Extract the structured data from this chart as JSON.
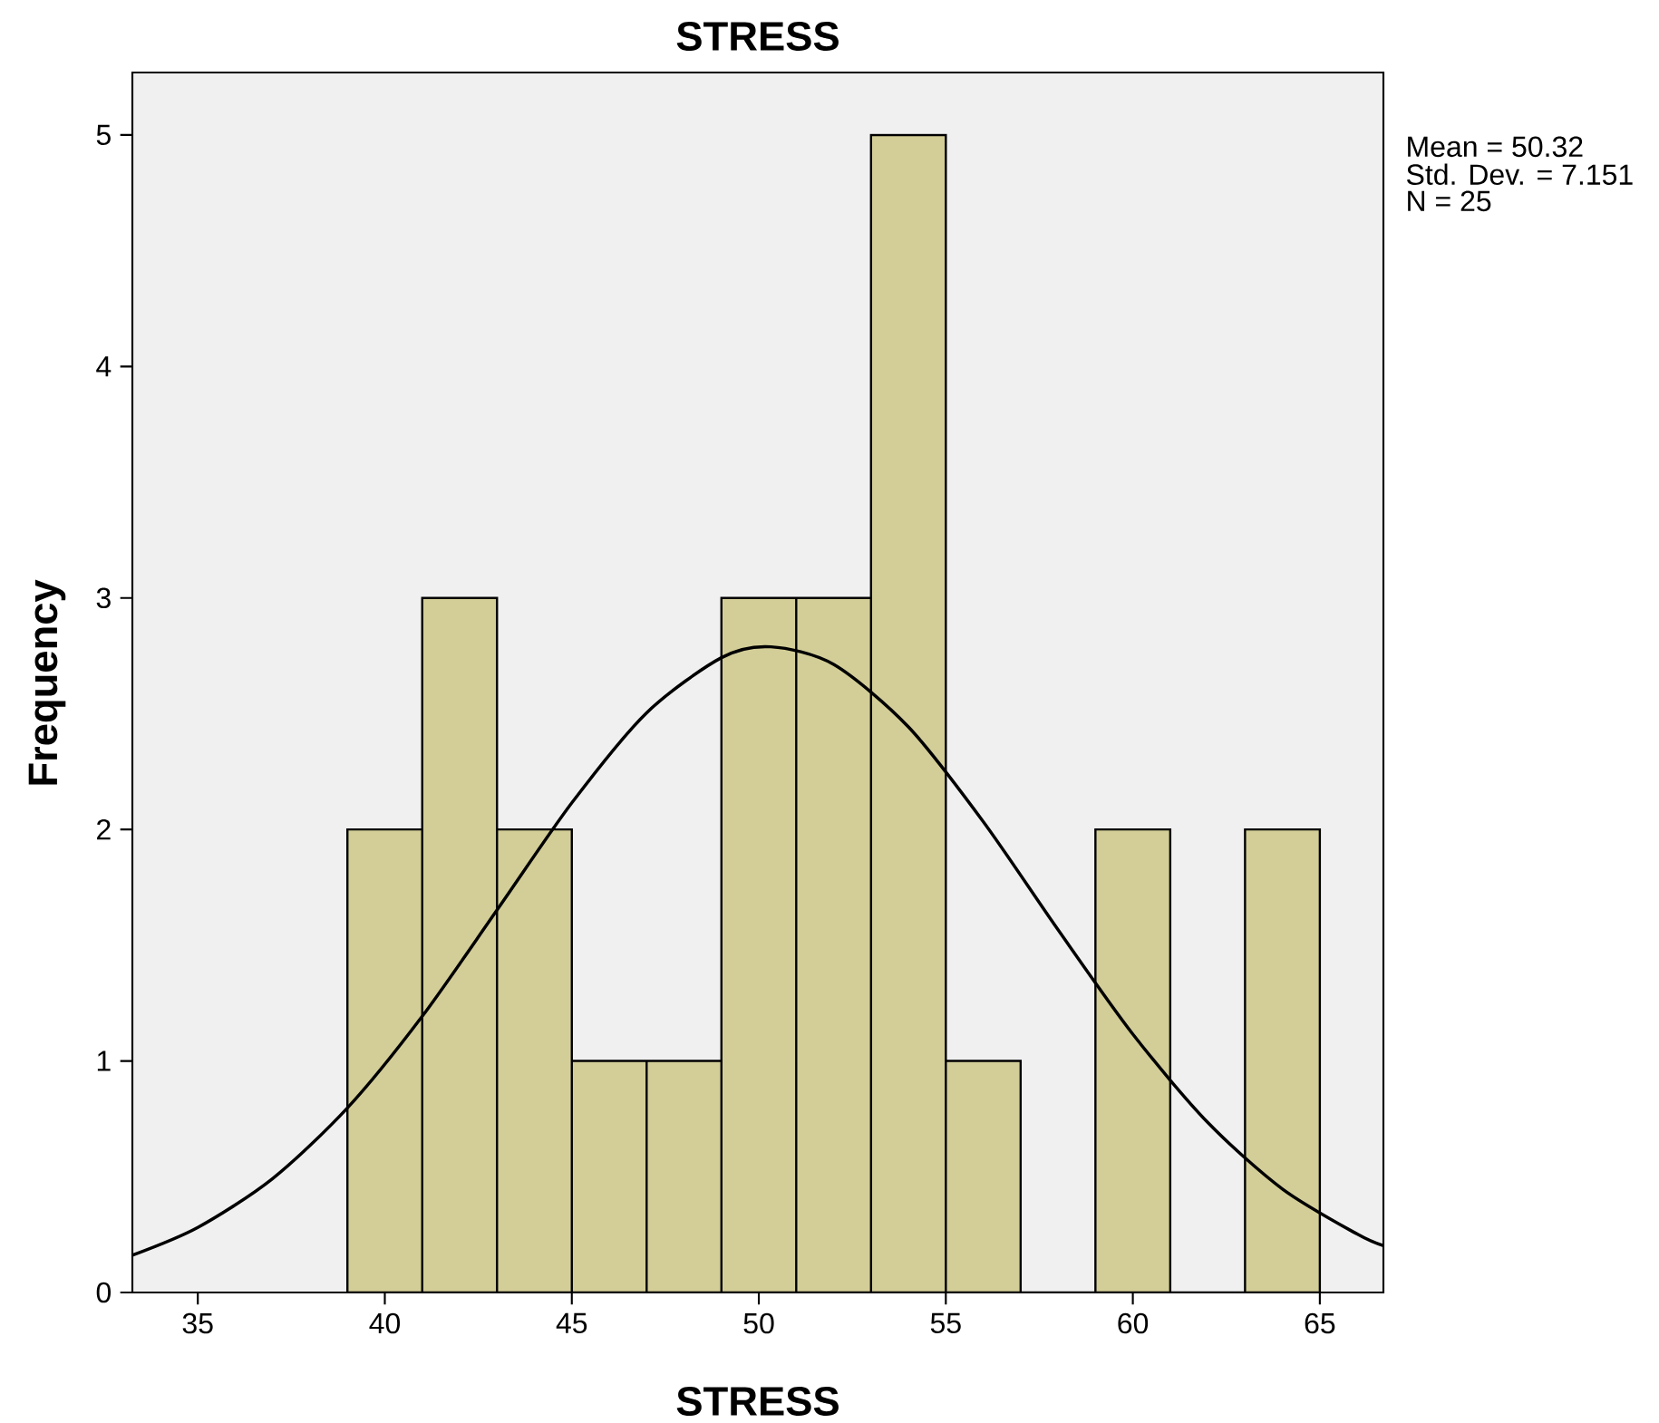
{
  "chart_data": {
    "type": "histogram",
    "title": "STRESS",
    "xlabel": "STRESS",
    "ylabel": "Frequency",
    "annotations": [
      "Mean = 50.32",
      "Std. Dev. = 7.151",
      "N = 25"
    ],
    "series": [
      {
        "color": "#d3ce97",
        "bins": [
          39,
          41,
          43,
          45,
          47,
          49,
          51,
          53,
          55,
          57,
          59,
          61,
          63,
          65
        ],
        "values": [
          2,
          3,
          2,
          1,
          1,
          3,
          3,
          5,
          1,
          0,
          2,
          0,
          2
        ]
      },
      {
        "type": "line",
        "color": "#000000",
        "x": [
          33.25,
          35,
          37,
          39,
          41,
          43,
          45,
          47,
          49,
          50.32,
          52,
          54,
          56,
          58,
          60,
          62,
          64,
          66,
          66.7
        ],
        "values": [
          0.161,
          0.281,
          0.492,
          0.797,
          1.193,
          1.652,
          2.115,
          2.504,
          2.742,
          2.789,
          2.713,
          2.443,
          2.034,
          1.567,
          1.116,
          0.735,
          0.447,
          0.252,
          0.202
        ]
      }
    ],
    "xlim": [
      33.25,
      66.7
    ],
    "ylim": [
      0,
      5.27
    ],
    "xticks": [
      35,
      40,
      45,
      50,
      55,
      60,
      65
    ],
    "yticks": [
      0,
      1,
      2,
      3,
      4,
      5
    ],
    "grid": false
  }
}
